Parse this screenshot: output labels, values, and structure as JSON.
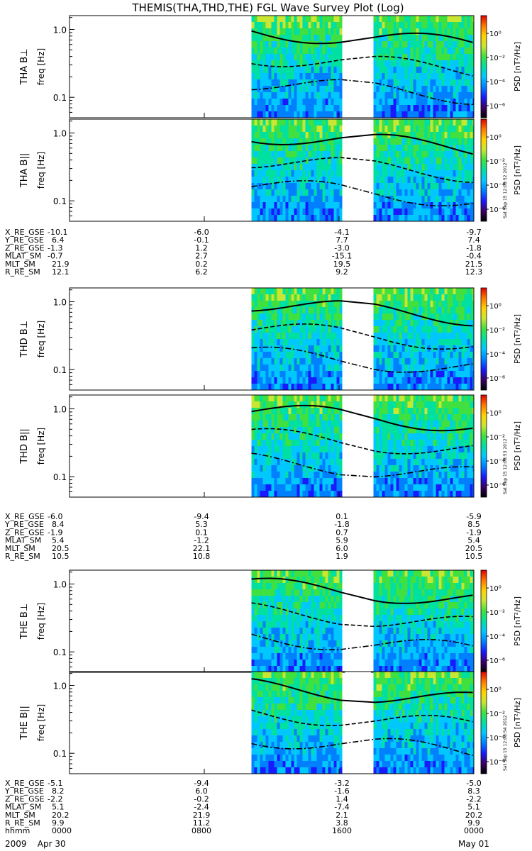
{
  "title": "THEMIS(THA,THD,THE) FGL Wave Survey Plot (Log)",
  "colors": {
    "background": "#ffffff",
    "gap": "#ffffff",
    "colormap": [
      "#000000",
      "#3b0066",
      "#1a1aff",
      "#0080ff",
      "#00c8ff",
      "#00e0a0",
      "#40e040",
      "#c8e632",
      "#ffd200",
      "#ff7800",
      "#e00000"
    ]
  },
  "chart_data": {
    "type": "heatmap",
    "xaxis": {
      "label": "hhmm",
      "ticks": [
        "0000",
        "0800",
        "1600",
        "0000"
      ],
      "tick_hours": [
        0,
        8,
        16,
        24
      ],
      "date_labels": [
        "2009    Apr 30",
        "May 01"
      ],
      "range_hours": [
        0,
        24
      ]
    },
    "yaxis": {
      "scale": "log",
      "range": [
        0.05,
        1.6
      ],
      "ticks": [
        "0.1",
        "1.0"
      ],
      "tick_values": [
        0.1,
        1.0
      ]
    },
    "colorbar": {
      "label": "PSD [nT²/Hz]",
      "scale": "log",
      "range": [
        1e-07,
        30
      ],
      "ticks": [
        "10⁰",
        "10⁻²",
        "10⁻⁴",
        "10⁻⁶"
      ],
      "tick_values": [
        1,
        0.01,
        0.0001,
        1e-06
      ]
    },
    "panels": [
      {
        "ylabel": "THA B⊥",
        "yunit": "freq [Hz]",
        "data_start_hour": 10.8,
        "gap_hours": [
          16.35,
          17.9
        ],
        "stamp": ""
      },
      {
        "ylabel": "THA B||",
        "yunit": "freq [Hz]",
        "data_start_hour": 10.8,
        "gap_hours": [
          16.35,
          17.9
        ],
        "stamp": "Sat Sep 15 12:08:52 2012"
      },
      {
        "ylabel": "THD B⊥",
        "yunit": "freq [Hz]",
        "data_start_hour": 10.8,
        "gap_hours": [
          16.35,
          17.9
        ],
        "stamp": ""
      },
      {
        "ylabel": "THD B||",
        "yunit": "freq [Hz]",
        "data_start_hour": 10.8,
        "gap_hours": [
          16.35,
          17.9
        ],
        "stamp": "Sat Sep 15 12:08:53 2012"
      },
      {
        "ylabel": "THE B⊥",
        "yunit": "freq [Hz]",
        "data_start_hour": 10.8,
        "gap_hours": [
          16.35,
          17.9
        ],
        "stamp": ""
      },
      {
        "ylabel": "THE B||",
        "yunit": "freq [Hz]",
        "data_start_hour": 10.8,
        "gap_hours": [
          16.35,
          17.9
        ],
        "stamp": "Sat Sep 15 12:08:54 2012"
      }
    ],
    "ephemeris": [
      {
        "probe": "THA",
        "rows": [
          [
            "X_RE_GSE",
            "-10.1",
            "-6.0",
            "-4.1",
            "-9.7"
          ],
          [
            "Y_RE_GSE",
            "6.4",
            "-0.1",
            "7.7",
            "7.4"
          ],
          [
            "Z_RE_GSE",
            "-1.3",
            "1.2",
            "-3.0",
            "-1.8"
          ],
          [
            "MLAT_SM",
            "-0.7",
            "2.7",
            "-15.1",
            "-0.4"
          ],
          [
            "MLT_SM",
            "21.9",
            "0.2",
            "19.5",
            "21.5"
          ],
          [
            "R_RE_SM",
            "12.1",
            "6.2",
            "9.2",
            "12.3"
          ]
        ]
      },
      {
        "probe": "THD",
        "rows": [
          [
            "X_RE_GSE",
            "-6.0",
            "-9.4",
            "0.1",
            "-5.9"
          ],
          [
            "Y_RE_GSE",
            "8.4",
            "5.3",
            "-1.8",
            "8.5"
          ],
          [
            "Z_RE_GSE",
            "-1.9",
            "0.1",
            "0.7",
            "-1.9"
          ],
          [
            "MLAT_SM",
            "5.4",
            "-1.2",
            "5.9",
            "5.4"
          ],
          [
            "MLT_SM",
            "20.5",
            "22.1",
            "6.0",
            "20.5"
          ],
          [
            "R_RE_SM",
            "10.5",
            "10.8",
            "1.9",
            "10.5"
          ]
        ]
      },
      {
        "probe": "THE",
        "rows": [
          [
            "X_RE_GSE",
            "-5.1",
            "-9.4",
            "-3.2",
            "-5.0"
          ],
          [
            "Y_RE_GSE",
            "8.2",
            "6.0",
            "-1.6",
            "8.3"
          ],
          [
            "Z_RE_GSE",
            "-2.2",
            "-0.2",
            "1.4",
            "-2.2"
          ],
          [
            "MLAT_SM",
            "5.1",
            "-2.4",
            "-7.4",
            "5.1"
          ],
          [
            "MLT_SM",
            "20.2",
            "21.9",
            "2.1",
            "20.2"
          ],
          [
            "R_RE_SM",
            "9.9",
            "11.2",
            "3.8",
            "9.9"
          ]
        ]
      }
    ],
    "time_row": [
      "hhmm",
      "0000",
      "0800",
      "1600",
      "0000"
    ]
  }
}
